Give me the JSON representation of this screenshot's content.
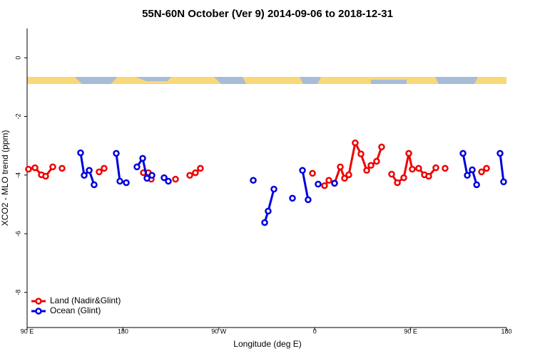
{
  "chart_data": {
    "type": "line",
    "title": "55N-60N October (Ver 9)   2014-09-06 to 2018-12-31",
    "x_label": "Longitude (deg E)",
    "y_label": "XCO2 - MLO trend (ppm)",
    "xlim": [
      90,
      540
    ],
    "xticks": [
      {
        "value": 90,
        "label": "90 E"
      },
      {
        "value": 180,
        "label": "180"
      },
      {
        "value": 270,
        "label": "90 W"
      },
      {
        "value": 360,
        "label": "0"
      },
      {
        "value": 450,
        "label": "90 E"
      },
      {
        "value": 540,
        "label": "180"
      }
    ],
    "ylim": [
      -9.2,
      1.0
    ],
    "yticks": [
      0,
      -2,
      -4,
      -6,
      -8
    ],
    "legend": "bottom-left",
    "series": [
      {
        "name": "Land (Nadir&Glint)",
        "color": "#ee0000",
        "x": [
          91.3,
          97.4,
          103.4,
          107.4,
          114.1,
          null,
          122.8,
          null,
          157.6,
          162.3,
          null,
          199.2,
          203.8,
          206.5,
          null,
          229.3,
          null,
          242.7,
          248.0,
          252.7,
          null,
          357.9,
          null,
          369.2,
          373.3,
          378.6,
          384.0,
          388.0,
          392.0,
          398.0,
          403.4,
          408.8,
          412.8,
          418.1,
          422.8,
          null,
          432.2,
          437.6,
          443.6,
          448.3,
          451.6,
          457.6,
          463.0,
          467.0,
          473.7,
          null,
          482.4,
          null,
          516.6,
          521.3
        ],
        "values": [
          -3.8,
          -3.75,
          -3.99,
          -4.04,
          -3.72,
          null,
          -3.77,
          null,
          -3.89,
          -3.77,
          null,
          -3.92,
          -3.92,
          -4.14,
          null,
          -4.14,
          null,
          -4.01,
          -3.92,
          -3.77,
          null,
          -3.94,
          null,
          -4.36,
          -4.18,
          -4.28,
          -3.72,
          -4.11,
          -3.99,
          -2.9,
          -3.28,
          -3.84,
          -3.67,
          -3.53,
          -3.04,
          null,
          -3.97,
          -4.26,
          -4.09,
          -3.26,
          -3.8,
          -3.77,
          -3.99,
          -4.04,
          -3.75,
          null,
          -3.77,
          null,
          -3.89,
          -3.77
        ]
      },
      {
        "name": "Ocean (Glint)",
        "color": "#0000dd",
        "x": [
          140.2,
          143.6,
          148.3,
          152.9,
          null,
          173.7,
          177.1,
          null,
          183.1,
          null,
          193.1,
          198.5,
          202.5,
          207.2,
          null,
          218.6,
          222.6,
          null,
          302.3,
          null,
          313.0,
          316.3,
          321.7,
          null,
          339.1,
          null,
          348.5,
          353.8,
          null,
          363.2,
          null,
          378.6,
          null,
          499.2,
          503.2,
          507.9,
          512.0,
          null,
          534.0,
          537.3
        ],
        "values": [
          -3.24,
          -4.01,
          -3.84,
          -4.33,
          null,
          -3.26,
          -4.21,
          null,
          -4.26,
          null,
          -3.72,
          -3.43,
          -4.11,
          -4.01,
          null,
          -4.09,
          -4.21,
          null,
          -4.18,
          null,
          -5.62,
          -5.23,
          -4.48,
          null,
          -4.79,
          null,
          -3.84,
          -4.84,
          null,
          -4.31,
          null,
          -4.28,
          null,
          -3.26,
          -4.01,
          -3.82,
          -4.33,
          null,
          -3.26,
          -4.23
        ]
      }
    ]
  }
}
